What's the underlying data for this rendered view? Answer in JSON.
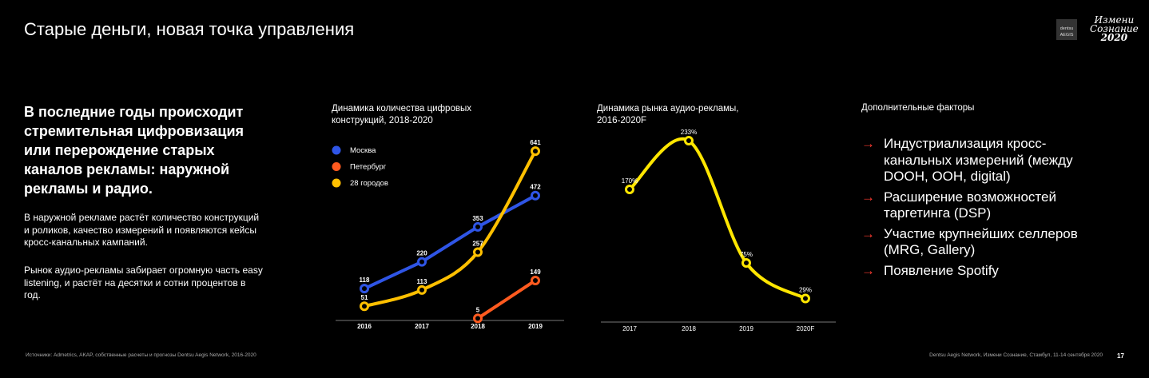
{
  "header": {
    "title": "Старые деньги, новая точка управления",
    "logo_dentsu": "dentsu AEGIS network",
    "logo_event": "Измени Сознание 2020"
  },
  "left": {
    "lead": "В последние годы происходит стремительная цифровизация или перерождение старых каналов рекламы: наружной рекламы и радио.",
    "p1": "В наружной рекламе растёт количество конструкций и роликов, качество измерений и появляются кейсы кросс-канальных кампаний.",
    "p2": "Рынок аудио-рекламы забирает огромную часть easy listening, и растёт на десятки и сотни процентов в год."
  },
  "factors": {
    "title": "Дополнительные факторы",
    "arrow": "→",
    "items": [
      "Индустриализация кросс-канальных измерений (между DOOH, OOH, digital)",
      "Расширение возможностей таргетинга (DSP)",
      "Участие крупнейших селлеров (MRG, Gallery)",
      "Появление Spotify"
    ]
  },
  "footer": {
    "source": "Источники: Admetrics, AKAP, собственные расчеты и прогнозы Dentsu Aegis Network, 2016-2020",
    "event": "Dentsu Aegis Network, Измени Сознание, Стамбул, 11-14 сентября 2020",
    "page": "17"
  },
  "chart_data": [
    {
      "type": "line",
      "title": "Динамика количества цифровых конструкций, 2018-2020",
      "categories": [
        "2016",
        "2017",
        "2018",
        "2019"
      ],
      "legend": "top-left",
      "grid": false,
      "series": [
        {
          "name": "Москва",
          "color": "#2f55e6",
          "values": [
            118,
            220,
            353,
            472
          ]
        },
        {
          "name": "Петербург",
          "color": "#ff5a1f",
          "values": [
            null,
            null,
            5,
            149
          ]
        },
        {
          "name": "28 городов",
          "color": "#ffc000",
          "values": [
            51,
            113,
            257,
            641
          ]
        }
      ]
    },
    {
      "type": "line",
      "title": "Динамика рынка аудио-рекламы, 2016-2020F",
      "categories": [
        "2017",
        "2018",
        "2019",
        "2020F"
      ],
      "grid": false,
      "series": [
        {
          "color": "#ffe600",
          "values": [
            170,
            233,
            75,
            29
          ],
          "labels": [
            "170%",
            "233%",
            "75%",
            "29%"
          ]
        }
      ]
    }
  ]
}
